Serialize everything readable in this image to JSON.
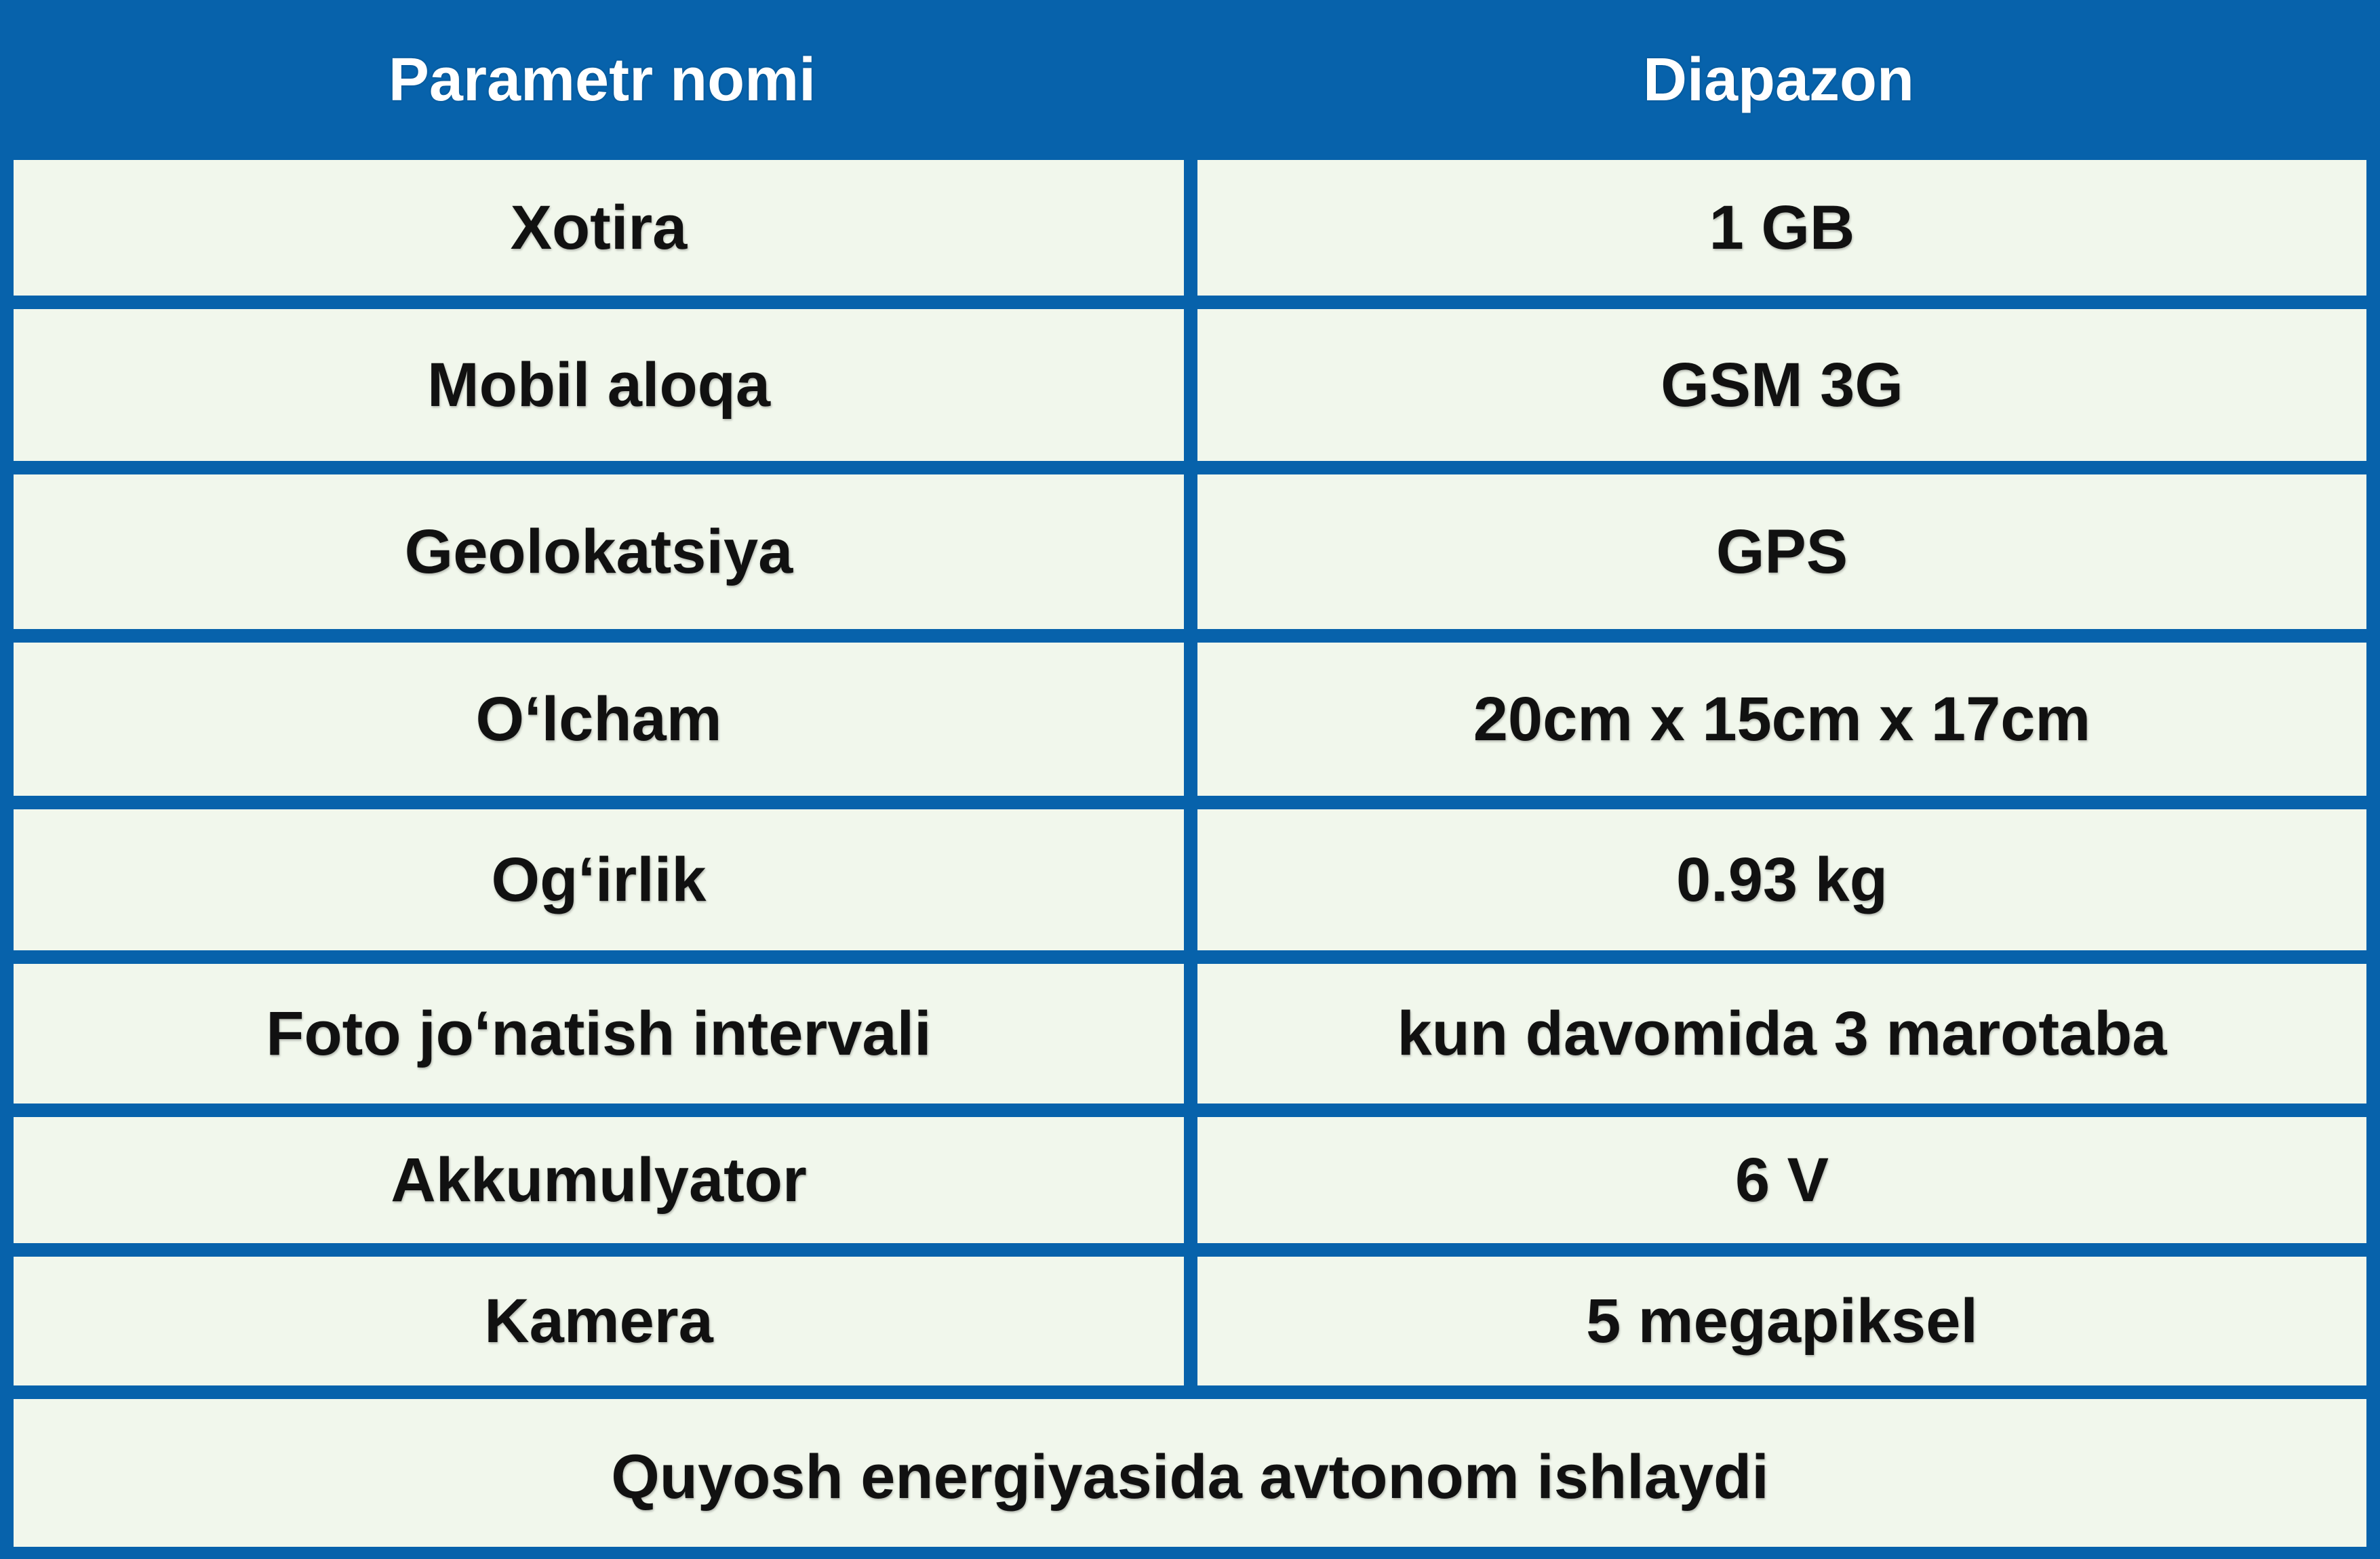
{
  "colors": {
    "header_background": "#0762ab",
    "cell_background": "#f1f7ec",
    "header_text": "#ffffff",
    "cell_text": "#111111"
  },
  "table": {
    "headers": [
      "Parametr nomi",
      "Diapazon"
    ],
    "rows": [
      {
        "name": "Xotira",
        "value": "1 GB"
      },
      {
        "name": "Mobil aloqa",
        "value": "GSM 3G"
      },
      {
        "name": "Geolokatsiya",
        "value": "GPS"
      },
      {
        "name": "O‘lcham",
        "value": "20cm x 15cm x 17cm"
      },
      {
        "name": "Og‘irlik",
        "value": "0.93 kg"
      },
      {
        "name": "Foto jo‘natish intervali",
        "value": "kun davomida 3 marotaba"
      },
      {
        "name": "Akkumulyator",
        "value": "6 V"
      },
      {
        "name": "Kamera",
        "value": "5 megapiksel"
      }
    ],
    "footer_note": "Quyosh energiyasida avtonom ishlaydi"
  }
}
